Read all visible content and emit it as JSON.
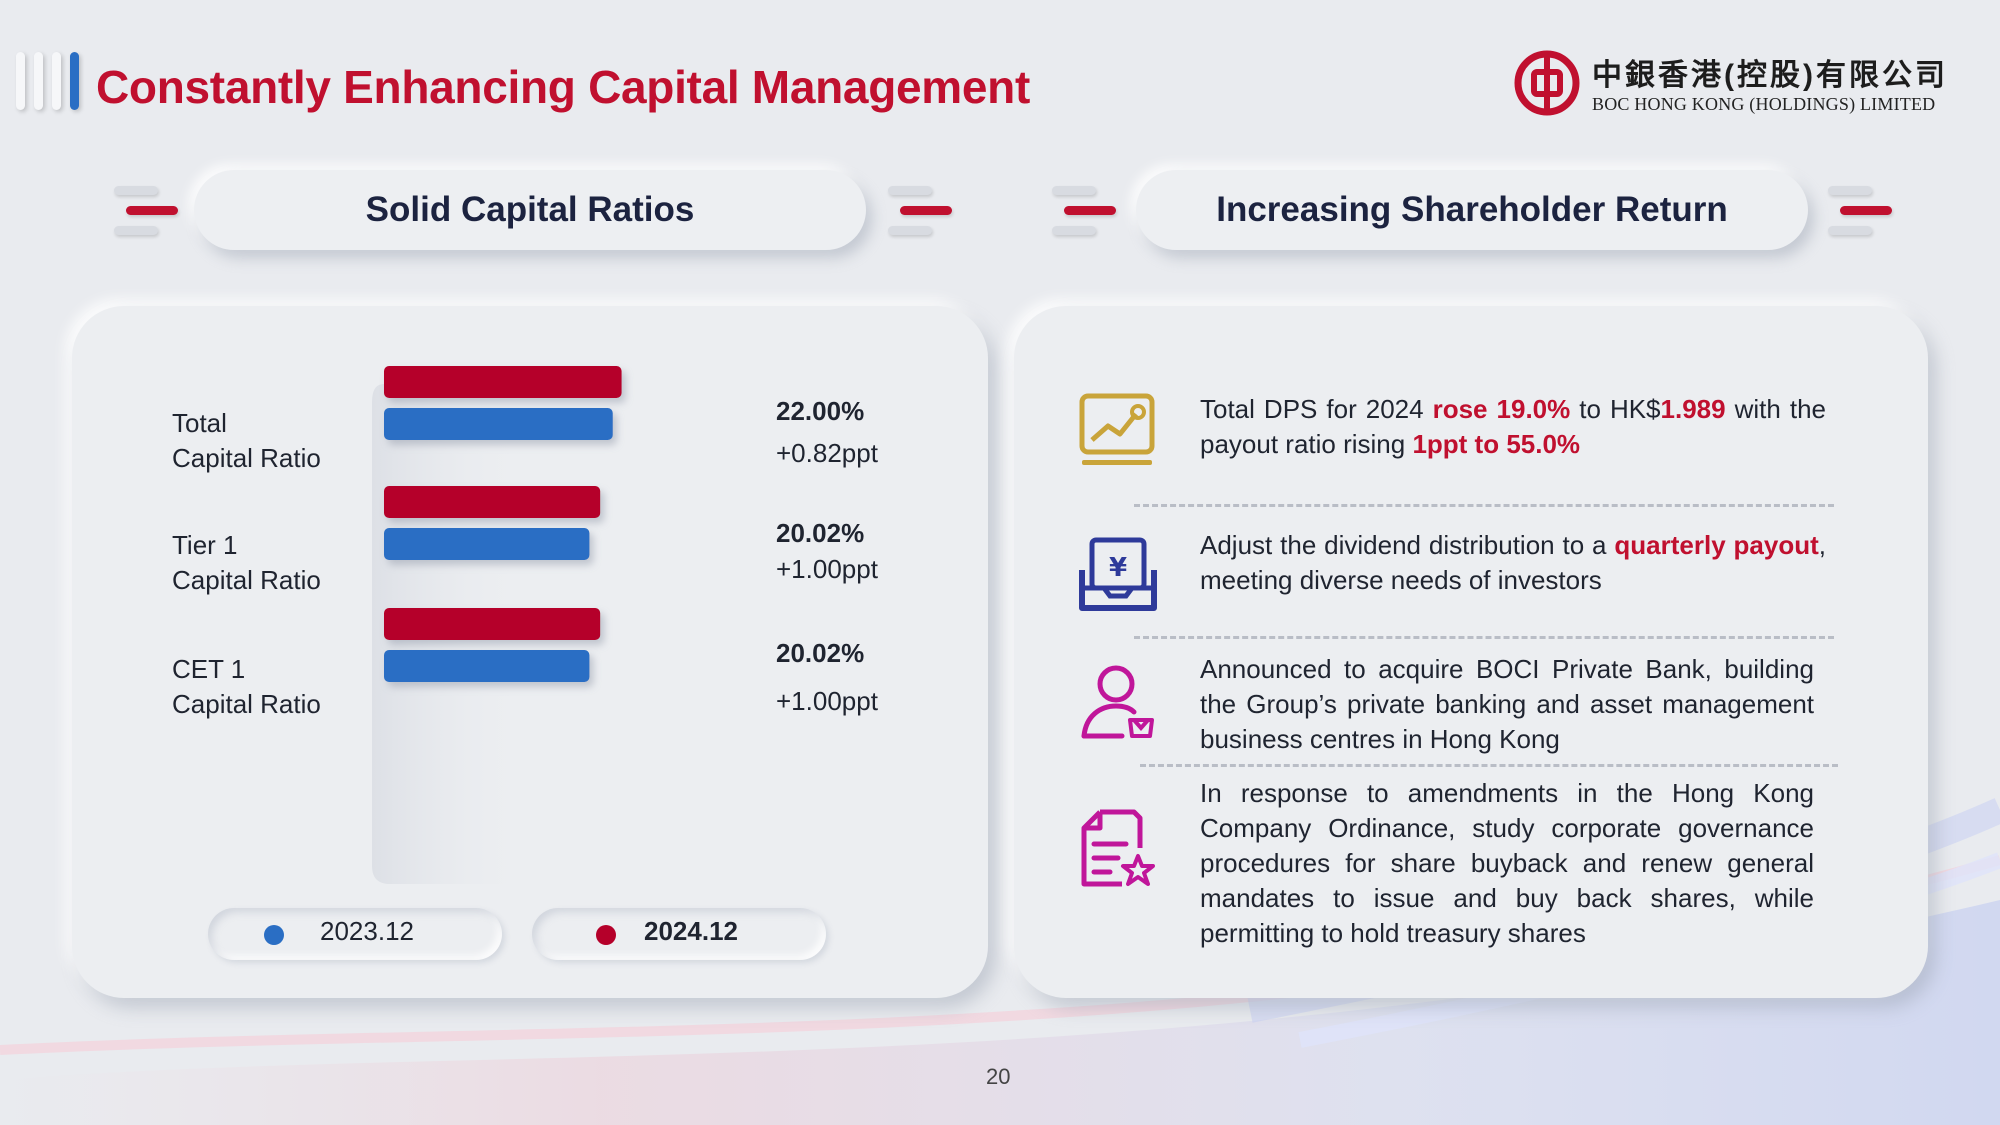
{
  "header": {
    "title": "Constantly Enhancing Capital Management",
    "logo_cn": "中銀香港(控股)有限公司",
    "logo_en": "BOC HONG KONG (HOLDINGS) LIMITED"
  },
  "sections": {
    "left_title": "Solid Capital Ratios",
    "right_title": "Increasing Shareholder Return"
  },
  "colors": {
    "brand_red": "#c0102f",
    "series_2024": "#b5002a",
    "series_2023": "#2a6ec4",
    "icon_gold": "#c9a43a",
    "icon_navy": "#2e3a9a",
    "icon_magenta": "#c0169a"
  },
  "chart_data": {
    "type": "bar",
    "orientation": "horizontal",
    "categories": [
      "Total Capital Ratio",
      "Tier 1 Capital Ratio",
      "CET 1 Capital Ratio"
    ],
    "category_label_lines": [
      [
        "Total",
        "Capital Ratio"
      ],
      [
        "Tier 1",
        "Capital Ratio"
      ],
      [
        "CET 1",
        "Capital Ratio"
      ]
    ],
    "series": [
      {
        "name": "2024.12",
        "values": [
          22.0,
          20.02,
          20.02
        ]
      },
      {
        "name": "2023.12",
        "values": [
          21.18,
          19.02,
          19.02
        ]
      }
    ],
    "value_labels": [
      "22.00%",
      "20.02%",
      "20.02%"
    ],
    "change_labels": [
      "+0.82ppt",
      "+1.00ppt",
      "+1.00ppt"
    ],
    "unit": "%",
    "legend": {
      "placement": "bottom",
      "items": [
        "2023.12",
        "2024.12"
      ]
    }
  },
  "highlights": [
    {
      "icon": "chart-growth-icon",
      "segments": [
        {
          "t": "Total DPS for 2024 ",
          "em": false
        },
        {
          "t": "rose 19.0%",
          "em": true
        },
        {
          "t": " to HK$",
          "em": false
        },
        {
          "t": "1.989",
          "em": true
        },
        {
          "t": " with the payout ratio rising ",
          "em": false
        },
        {
          "t": "1ppt to 55.0%",
          "em": true
        }
      ]
    },
    {
      "icon": "dividend-yen-icon",
      "segments": [
        {
          "t": "Adjust the dividend distribution to a ",
          "em": false
        },
        {
          "t": "quarterly payout",
          "em": true
        },
        {
          "t": ", meeting diverse needs of investors",
          "em": false
        }
      ]
    },
    {
      "icon": "private-banking-person-icon",
      "segments": [
        {
          "t": "Announced to acquire BOCI Private Bank, building the Group’s private banking and asset management business centres in Hong Kong",
          "em": false
        }
      ]
    },
    {
      "icon": "governance-document-icon",
      "segments": [
        {
          "t": "In response to amendments in the Hong Kong Company Ordinance, study corporate governance procedures for share buyback and renew general mandates to issue and buy back shares, while permitting to hold treasury shares",
          "em": false
        }
      ]
    }
  ],
  "footer": {
    "page_number": "20"
  }
}
